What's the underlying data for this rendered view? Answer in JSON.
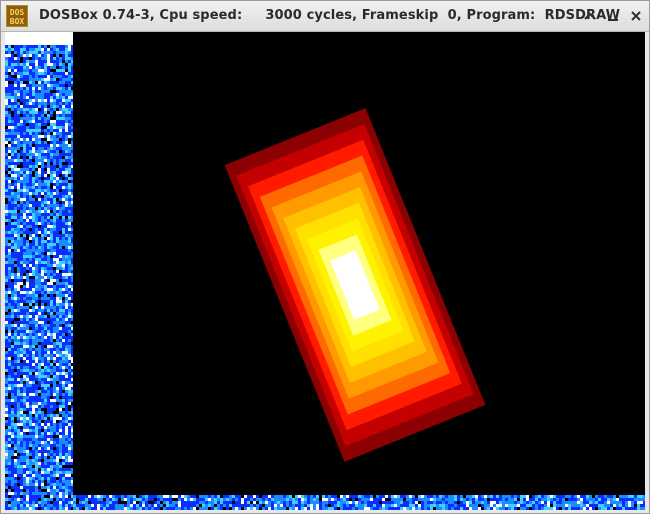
{
  "window": {
    "title": "DOSBox 0.74-3, Cpu speed:     3000 cycles, Frameskip  0, Program:  RDSDRAW",
    "icon": "dosbox-logo-icon",
    "icon_text_top": "DOS",
    "icon_text_bottom": "BOX",
    "controls": [
      "up-arrow-icon",
      "minimize-icon",
      "close-icon"
    ]
  },
  "screen": {
    "program": "RDSDRAW",
    "shape": "rotated nested rectangles",
    "gradient_colors": [
      "#8b0000",
      "#c40000",
      "#ff1a00",
      "#ff6a00",
      "#ff9a00",
      "#ffc000",
      "#ffe000",
      "#fff200",
      "#ffff80",
      "#ffffff"
    ],
    "noise_colors": [
      "#0a2eff",
      "#1a8cff",
      "#3fd0ff",
      "#ffffff",
      "#000000"
    ]
  }
}
